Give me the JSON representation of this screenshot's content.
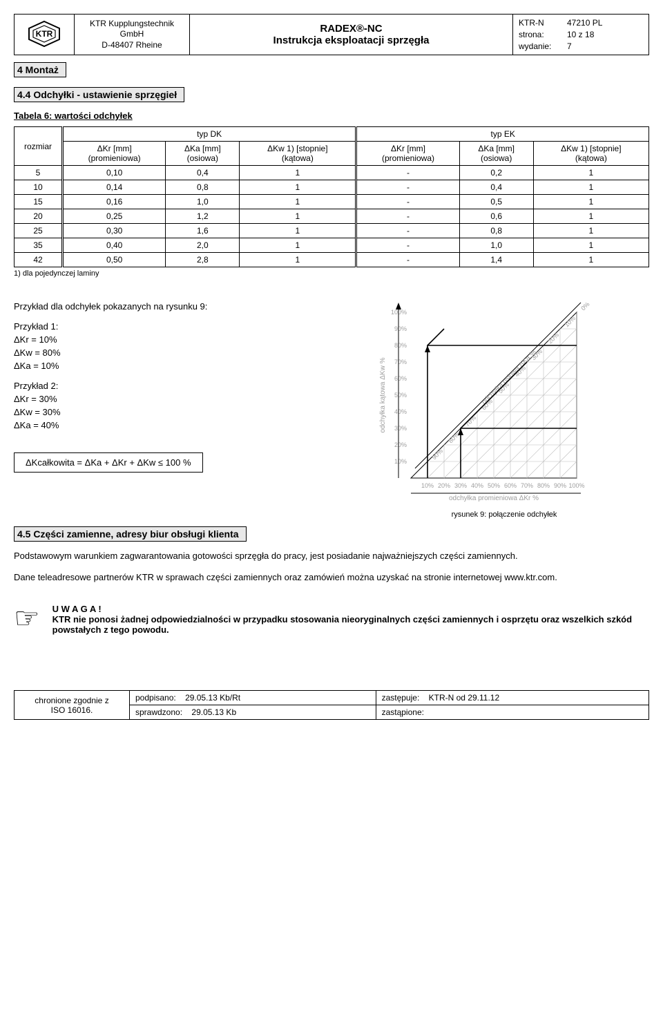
{
  "header": {
    "company_line1": "KTR Kupplungstechnik",
    "company_line2": "GmbH",
    "company_line3": "D-48407 Rheine",
    "title_line1": "RADEX®-NC",
    "title_line2": "Instrukcja eksploatacji sprzęgła",
    "meta": {
      "ktrn_label": "KTR-N",
      "ktrn_value": "47210 PL",
      "page_label": "strona:",
      "page_value": "10 z 18",
      "edition_label": "wydanie:",
      "edition_value": "7"
    }
  },
  "section_4": "4 Montaż",
  "section_44": "4.4 Odchyłki - ustawienie sprzęgieł",
  "table6_title": "Tabela 6: wartości odchyłek",
  "table6": {
    "rozmiar_header": "rozmiar",
    "group_dk": "typ DK",
    "group_ek": "typ EK",
    "col_kr": "ΔKr [mm]",
    "col_kr_sub": "(promieniowa)",
    "col_ka": "ΔKa [mm]",
    "col_ka_sub": "(osiowa)",
    "col_kw": "ΔKw 1) [stopnie]",
    "col_kw_sub": "(kątowa)",
    "rows": [
      {
        "r": "5",
        "dk": [
          "0,10",
          "0,4",
          "1"
        ],
        "ek": [
          "-",
          "0,2",
          "1"
        ]
      },
      {
        "r": "10",
        "dk": [
          "0,14",
          "0,8",
          "1"
        ],
        "ek": [
          "-",
          "0,4",
          "1"
        ]
      },
      {
        "r": "15",
        "dk": [
          "0,16",
          "1,0",
          "1"
        ],
        "ek": [
          "-",
          "0,5",
          "1"
        ]
      },
      {
        "r": "20",
        "dk": [
          "0,25",
          "1,2",
          "1"
        ],
        "ek": [
          "-",
          "0,6",
          "1"
        ]
      },
      {
        "r": "25",
        "dk": [
          "0,30",
          "1,6",
          "1"
        ],
        "ek": [
          "-",
          "0,8",
          "1"
        ]
      },
      {
        "r": "35",
        "dk": [
          "0,40",
          "2,0",
          "1"
        ],
        "ek": [
          "-",
          "1,0",
          "1"
        ]
      },
      {
        "r": "42",
        "dk": [
          "0,50",
          "2,8",
          "1"
        ],
        "ek": [
          "-",
          "1,4",
          "1"
        ]
      }
    ],
    "footnote": "1) dla pojedynczej laminy"
  },
  "examples": {
    "intro": "Przykład dla odchyłek pokazanych na rysunku 9:",
    "ex1_title": "Przykład 1:",
    "ex1_l1": "ΔKr = 10%",
    "ex1_l2": "ΔKw = 80%",
    "ex1_l3": "ΔKa = 10%",
    "ex2_title": "Przykład 2:",
    "ex2_l1": "ΔKr = 30%",
    "ex2_l2": "ΔKw = 30%",
    "ex2_l3": "ΔKa = 40%"
  },
  "formula": "ΔKcałkowita = ΔKa + ΔKr + ΔKw ≤ 100 %",
  "fig9": {
    "caption": "rysunek 9: połączenie odchyłek",
    "y_label": "odchyłka kątowa ΔKw %",
    "x_label": "odchyłka promieniowa ΔKr %",
    "diag_label": "odchyłka osiowa ΔKa %",
    "ticks": [
      "10%",
      "20%",
      "30%",
      "40%",
      "50%",
      "60%",
      "70%",
      "80%",
      "90%",
      "100%"
    ],
    "diag_ticks": [
      "0%",
      "10%",
      "20%",
      "30%",
      "40%",
      "50%",
      "60%",
      "70%",
      "80%",
      "90%"
    ],
    "colors": {
      "grid": "#bdbdbd",
      "axis": "#000000",
      "text": "#9e9e9e",
      "arrow": "#000000"
    }
  },
  "section_45": "4.5 Części zamienne, adresy biur obsługi klienta",
  "para1": "Podstawowym warunkiem zagwarantowania gotowości sprzęgła do pracy, jest posiadanie najważniejszych części zamiennych.",
  "para2": "Dane teleadresowe partnerów KTR w sprawach części zamiennych oraz zamówień można uzyskać na stronie internetowej www.ktr.com.",
  "notice": {
    "title": "U W A G A !",
    "body": "KTR nie ponosi żadnej odpowiedzialności w przypadku stosowania nieoryginalnych części zamiennych i osprzętu oraz wszelkich szkód powstałych z tego powodu."
  },
  "footer": {
    "left_l1": "chronione zgodnie z",
    "left_l2": "ISO 16016.",
    "signed_label": "podpisano:",
    "signed_value": "29.05.13 Kb/Rt",
    "checked_label": "sprawdzono:",
    "checked_value": "29.05.13 Kb",
    "replaces_label": "zastępuje:",
    "replaces_value": "KTR-N od 29.11.12",
    "replaced_label": "zastąpione:",
    "replaced_value": ""
  }
}
